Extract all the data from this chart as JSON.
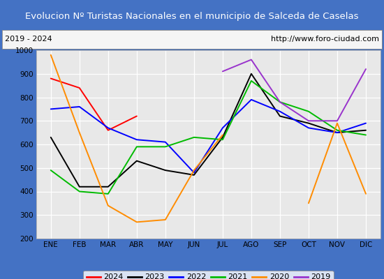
{
  "title": "Evolucion Nº Turistas Nacionales en el municipio de Salceda de Caselas",
  "subtitle_left": "2019 - 2024",
  "subtitle_right": "http://www.foro-ciudad.com",
  "months": [
    "ENE",
    "FEB",
    "MAR",
    "ABR",
    "MAY",
    "JUN",
    "JUL",
    "AGO",
    "SEP",
    "OCT",
    "NOV",
    "DIC"
  ],
  "ylim": [
    200,
    1000
  ],
  "yticks": [
    200,
    300,
    400,
    500,
    600,
    700,
    800,
    900,
    1000
  ],
  "series": {
    "2024": {
      "color": "#ff0000",
      "values": [
        880,
        840,
        660,
        720,
        null,
        null,
        null,
        null,
        null,
        null,
        null,
        null
      ]
    },
    "2023": {
      "color": "#000000",
      "values": [
        630,
        420,
        420,
        530,
        490,
        470,
        630,
        900,
        720,
        690,
        650,
        660
      ]
    },
    "2022": {
      "color": "#0000ff",
      "values": [
        750,
        760,
        670,
        620,
        610,
        480,
        670,
        790,
        740,
        670,
        650,
        690
      ]
    },
    "2021": {
      "color": "#00bb00",
      "values": [
        490,
        400,
        390,
        590,
        590,
        630,
        620,
        870,
        780,
        740,
        660,
        640
      ]
    },
    "2020": {
      "color": "#ff8c00",
      "values": [
        980,
        650,
        340,
        270,
        280,
        490,
        640,
        null,
        null,
        350,
        690,
        390
      ]
    },
    "2019": {
      "color": "#9933cc",
      "values": [
        null,
        null,
        null,
        null,
        null,
        null,
        910,
        960,
        780,
        700,
        700,
        920
      ]
    }
  },
  "title_bg_color": "#4472c4",
  "title_font_color": "#ffffff",
  "plot_bg_color": "#e8e8e8",
  "grid_color": "#ffffff",
  "legend_order": [
    "2024",
    "2023",
    "2022",
    "2021",
    "2020",
    "2019"
  ],
  "border_color": "#4472c4"
}
